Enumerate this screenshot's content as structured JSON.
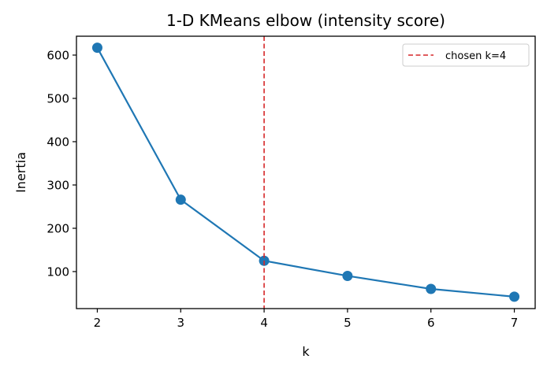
{
  "chart_data": {
    "type": "line",
    "title": "1-D KMeans elbow (intensity score)",
    "xlabel": "k",
    "ylabel": "Inertia",
    "x": [
      2,
      3,
      4,
      5,
      6,
      7
    ],
    "series": [
      {
        "name": "inertia",
        "values": [
          617,
          266,
          125,
          90,
          60,
          42
        ],
        "color": "#1f77b4",
        "marker": "circle"
      }
    ],
    "xticks": [
      2,
      3,
      4,
      5,
      6,
      7
    ],
    "yticks": [
      100,
      200,
      300,
      400,
      500,
      600
    ],
    "xlim": [
      1.75,
      7.25
    ],
    "ylim": [
      14.5,
      643.6
    ],
    "grid": false,
    "annotations": [
      {
        "type": "vline",
        "x": 4,
        "style": "dashed",
        "color": "#d62728",
        "label": "chosen k=4"
      }
    ],
    "legend": {
      "position": "upper right",
      "entries": [
        "chosen k=4"
      ]
    }
  }
}
